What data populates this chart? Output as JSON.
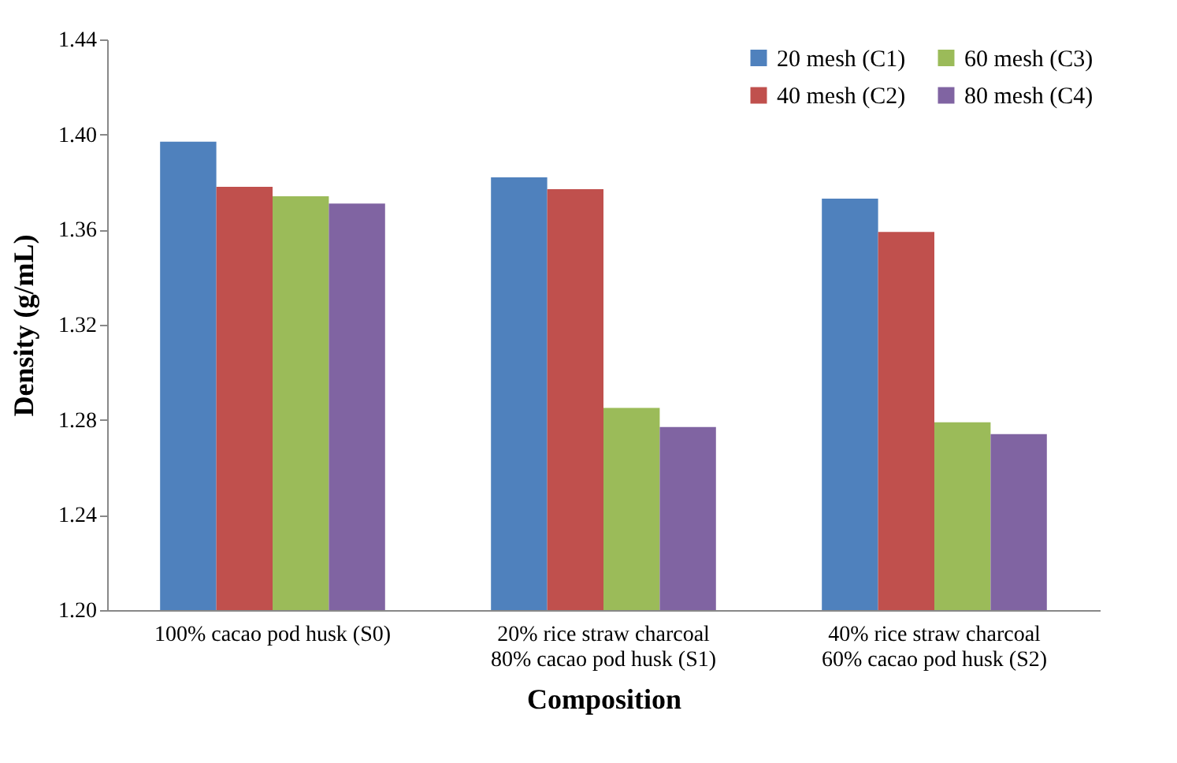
{
  "chart_data": {
    "type": "bar",
    "xlabel": "Composition",
    "ylabel": "Density (g/mL)",
    "categories": [
      "100% cacao pod husk (S0)",
      "20% rice straw charcoal\n80% cacao pod husk (S1)",
      "40% rice straw charcoal\n60% cacao pod husk (S2)"
    ],
    "series": [
      {
        "name": "20 mesh (C1)",
        "color": "#4f81bd",
        "values": [
          1.397,
          1.382,
          1.373
        ]
      },
      {
        "name": "40 mesh (C2)",
        "color": "#c0504d",
        "values": [
          1.378,
          1.377,
          1.359
        ]
      },
      {
        "name": "60 mesh (C3)",
        "color": "#9bbb59",
        "values": [
          1.374,
          1.285,
          1.279
        ]
      },
      {
        "name": "80 mesh (C4)",
        "color": "#8064a2",
        "values": [
          1.371,
          1.277,
          1.274
        ]
      }
    ],
    "ylim": [
      1.2,
      1.44
    ],
    "yticks": [
      {
        "value": 1.2,
        "label": "1.20"
      },
      {
        "value": 1.24,
        "label": "1.24"
      },
      {
        "value": 1.28,
        "label": "1.28"
      },
      {
        "value": 1.32,
        "label": "1.32"
      },
      {
        "value": 1.36,
        "label": "1.36"
      },
      {
        "value": 1.4,
        "label": "1.40"
      },
      {
        "value": 1.44,
        "label": "1.44"
      }
    ],
    "legend": "top right"
  }
}
